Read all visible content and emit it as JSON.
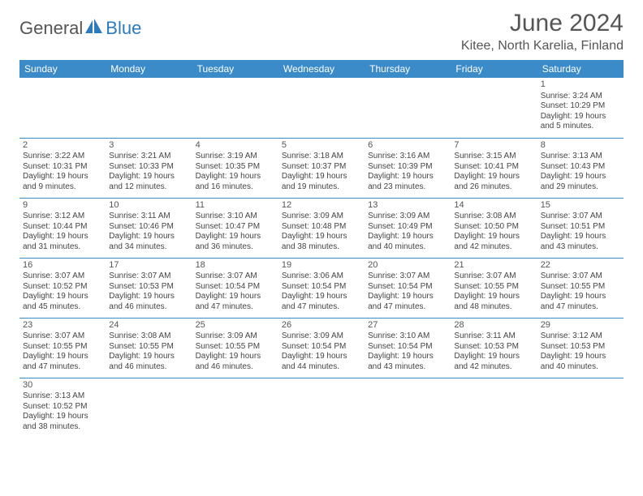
{
  "brand": {
    "part1": "General",
    "part2": "Blue"
  },
  "title": "June 2024",
  "location": "Kitee, North Karelia, Finland",
  "colors": {
    "header_bg": "#3b8bc9",
    "header_fg": "#ffffff",
    "sep": "#3b8bc9",
    "blank_bg": "#f2f2f2",
    "text": "#444444",
    "brand_blue": "#2c7bc0",
    "brand_gray": "#555555"
  },
  "fonts": {
    "title_pt": 30,
    "location_pt": 16,
    "th_pt": 12,
    "cell_pt": 10,
    "daynum_pt": 11
  },
  "dayHeaders": [
    "Sunday",
    "Monday",
    "Tuesday",
    "Wednesday",
    "Thursday",
    "Friday",
    "Saturday"
  ],
  "weeks": [
    [
      {
        "blank": true
      },
      {
        "blank": true
      },
      {
        "blank": true
      },
      {
        "blank": true
      },
      {
        "blank": true
      },
      {
        "blank": true
      },
      {
        "day": "1",
        "sunrise": "Sunrise: 3:24 AM",
        "sunset": "Sunset: 10:29 PM",
        "d1": "Daylight: 19 hours",
        "d2": "and 5 minutes."
      }
    ],
    [
      {
        "day": "2",
        "sunrise": "Sunrise: 3:22 AM",
        "sunset": "Sunset: 10:31 PM",
        "d1": "Daylight: 19 hours",
        "d2": "and 9 minutes."
      },
      {
        "day": "3",
        "sunrise": "Sunrise: 3:21 AM",
        "sunset": "Sunset: 10:33 PM",
        "d1": "Daylight: 19 hours",
        "d2": "and 12 minutes."
      },
      {
        "day": "4",
        "sunrise": "Sunrise: 3:19 AM",
        "sunset": "Sunset: 10:35 PM",
        "d1": "Daylight: 19 hours",
        "d2": "and 16 minutes."
      },
      {
        "day": "5",
        "sunrise": "Sunrise: 3:18 AM",
        "sunset": "Sunset: 10:37 PM",
        "d1": "Daylight: 19 hours",
        "d2": "and 19 minutes."
      },
      {
        "day": "6",
        "sunrise": "Sunrise: 3:16 AM",
        "sunset": "Sunset: 10:39 PM",
        "d1": "Daylight: 19 hours",
        "d2": "and 23 minutes."
      },
      {
        "day": "7",
        "sunrise": "Sunrise: 3:15 AM",
        "sunset": "Sunset: 10:41 PM",
        "d1": "Daylight: 19 hours",
        "d2": "and 26 minutes."
      },
      {
        "day": "8",
        "sunrise": "Sunrise: 3:13 AM",
        "sunset": "Sunset: 10:43 PM",
        "d1": "Daylight: 19 hours",
        "d2": "and 29 minutes."
      }
    ],
    [
      {
        "day": "9",
        "sunrise": "Sunrise: 3:12 AM",
        "sunset": "Sunset: 10:44 PM",
        "d1": "Daylight: 19 hours",
        "d2": "and 31 minutes."
      },
      {
        "day": "10",
        "sunrise": "Sunrise: 3:11 AM",
        "sunset": "Sunset: 10:46 PM",
        "d1": "Daylight: 19 hours",
        "d2": "and 34 minutes."
      },
      {
        "day": "11",
        "sunrise": "Sunrise: 3:10 AM",
        "sunset": "Sunset: 10:47 PM",
        "d1": "Daylight: 19 hours",
        "d2": "and 36 minutes."
      },
      {
        "day": "12",
        "sunrise": "Sunrise: 3:09 AM",
        "sunset": "Sunset: 10:48 PM",
        "d1": "Daylight: 19 hours",
        "d2": "and 38 minutes."
      },
      {
        "day": "13",
        "sunrise": "Sunrise: 3:09 AM",
        "sunset": "Sunset: 10:49 PM",
        "d1": "Daylight: 19 hours",
        "d2": "and 40 minutes."
      },
      {
        "day": "14",
        "sunrise": "Sunrise: 3:08 AM",
        "sunset": "Sunset: 10:50 PM",
        "d1": "Daylight: 19 hours",
        "d2": "and 42 minutes."
      },
      {
        "day": "15",
        "sunrise": "Sunrise: 3:07 AM",
        "sunset": "Sunset: 10:51 PM",
        "d1": "Daylight: 19 hours",
        "d2": "and 43 minutes."
      }
    ],
    [
      {
        "day": "16",
        "sunrise": "Sunrise: 3:07 AM",
        "sunset": "Sunset: 10:52 PM",
        "d1": "Daylight: 19 hours",
        "d2": "and 45 minutes."
      },
      {
        "day": "17",
        "sunrise": "Sunrise: 3:07 AM",
        "sunset": "Sunset: 10:53 PM",
        "d1": "Daylight: 19 hours",
        "d2": "and 46 minutes."
      },
      {
        "day": "18",
        "sunrise": "Sunrise: 3:07 AM",
        "sunset": "Sunset: 10:54 PM",
        "d1": "Daylight: 19 hours",
        "d2": "and 47 minutes."
      },
      {
        "day": "19",
        "sunrise": "Sunrise: 3:06 AM",
        "sunset": "Sunset: 10:54 PM",
        "d1": "Daylight: 19 hours",
        "d2": "and 47 minutes."
      },
      {
        "day": "20",
        "sunrise": "Sunrise: 3:07 AM",
        "sunset": "Sunset: 10:54 PM",
        "d1": "Daylight: 19 hours",
        "d2": "and 47 minutes."
      },
      {
        "day": "21",
        "sunrise": "Sunrise: 3:07 AM",
        "sunset": "Sunset: 10:55 PM",
        "d1": "Daylight: 19 hours",
        "d2": "and 48 minutes."
      },
      {
        "day": "22",
        "sunrise": "Sunrise: 3:07 AM",
        "sunset": "Sunset: 10:55 PM",
        "d1": "Daylight: 19 hours",
        "d2": "and 47 minutes."
      }
    ],
    [
      {
        "day": "23",
        "sunrise": "Sunrise: 3:07 AM",
        "sunset": "Sunset: 10:55 PM",
        "d1": "Daylight: 19 hours",
        "d2": "and 47 minutes."
      },
      {
        "day": "24",
        "sunrise": "Sunrise: 3:08 AM",
        "sunset": "Sunset: 10:55 PM",
        "d1": "Daylight: 19 hours",
        "d2": "and 46 minutes."
      },
      {
        "day": "25",
        "sunrise": "Sunrise: 3:09 AM",
        "sunset": "Sunset: 10:55 PM",
        "d1": "Daylight: 19 hours",
        "d2": "and 46 minutes."
      },
      {
        "day": "26",
        "sunrise": "Sunrise: 3:09 AM",
        "sunset": "Sunset: 10:54 PM",
        "d1": "Daylight: 19 hours",
        "d2": "and 44 minutes."
      },
      {
        "day": "27",
        "sunrise": "Sunrise: 3:10 AM",
        "sunset": "Sunset: 10:54 PM",
        "d1": "Daylight: 19 hours",
        "d2": "and 43 minutes."
      },
      {
        "day": "28",
        "sunrise": "Sunrise: 3:11 AM",
        "sunset": "Sunset: 10:53 PM",
        "d1": "Daylight: 19 hours",
        "d2": "and 42 minutes."
      },
      {
        "day": "29",
        "sunrise": "Sunrise: 3:12 AM",
        "sunset": "Sunset: 10:53 PM",
        "d1": "Daylight: 19 hours",
        "d2": "and 40 minutes."
      }
    ],
    [
      {
        "day": "30",
        "sunrise": "Sunrise: 3:13 AM",
        "sunset": "Sunset: 10:52 PM",
        "d1": "Daylight: 19 hours",
        "d2": "and 38 minutes."
      },
      {
        "blank": true
      },
      {
        "blank": true
      },
      {
        "blank": true
      },
      {
        "blank": true
      },
      {
        "blank": true
      },
      {
        "blank": true
      }
    ]
  ]
}
